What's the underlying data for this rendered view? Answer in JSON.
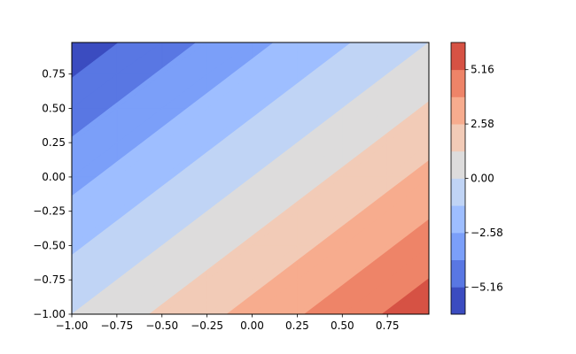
{
  "chart_data": {
    "type": "contourf",
    "title": "",
    "xlabel": "",
    "ylabel": "",
    "xlim": [
      -1.0,
      0.98
    ],
    "ylim": [
      -1.0,
      0.98
    ],
    "grid_x": [
      -1.0,
      -0.75,
      -0.5,
      -0.25,
      0.0,
      0.25,
      0.5,
      0.75,
      0.98
    ],
    "grid_y": [
      -1.0,
      -0.75,
      -0.5,
      -0.25,
      0.0,
      0.25,
      0.5,
      0.75,
      0.98
    ],
    "z_rows_bottom_to_top": [
      [
        0.0,
        0.75,
        1.5,
        2.25,
        3.0,
        3.75,
        4.5,
        5.25,
        5.94
      ],
      [
        -0.75,
        0.0,
        0.75,
        1.5,
        2.25,
        3.0,
        3.75,
        4.5,
        5.19
      ],
      [
        -1.5,
        -0.75,
        0.0,
        0.75,
        1.5,
        2.25,
        3.0,
        3.75,
        4.44
      ],
      [
        -2.25,
        -1.5,
        -0.75,
        0.0,
        0.75,
        1.5,
        2.25,
        3.0,
        3.69
      ],
      [
        -3.0,
        -2.25,
        -1.5,
        -0.75,
        0.0,
        0.75,
        1.5,
        2.25,
        2.94
      ],
      [
        -3.75,
        -3.0,
        -2.25,
        -1.5,
        -0.75,
        0.0,
        0.75,
        1.5,
        2.19
      ],
      [
        -4.5,
        -3.75,
        -3.0,
        -2.25,
        -1.5,
        -0.75,
        0.0,
        0.75,
        1.44
      ],
      [
        -5.25,
        -4.5,
        -3.75,
        -3.0,
        -2.25,
        -1.5,
        -0.75,
        0.0,
        0.69
      ],
      [
        -5.94,
        -5.19,
        -4.44,
        -3.69,
        -2.94,
        -2.19,
        -1.44,
        -0.69,
        0.0
      ]
    ],
    "levels": [
      -6.45,
      -5.16,
      -3.87,
      -2.58,
      -1.29,
      0.0,
      1.29,
      2.58,
      3.87,
      5.16,
      6.45
    ],
    "level_colors": [
      "#3b4cc0",
      "#5977e3",
      "#7b9ff9",
      "#9ebeff",
      "#c0d4f5",
      "#dddcdc",
      "#f2cbb7",
      "#f7ac8e",
      "#ee8468",
      "#d65244"
    ],
    "colormap": "coolwarm",
    "x_ticks": [
      -1.0,
      -0.75,
      -0.5,
      -0.25,
      0.0,
      0.25,
      0.5,
      0.75
    ],
    "x_tick_labels": [
      "−1.00",
      "−0.75",
      "−0.50",
      "−0.25",
      "0.00",
      "0.25",
      "0.50",
      "0.75"
    ],
    "y_ticks": [
      -1.0,
      -0.75,
      -0.5,
      -0.25,
      0.0,
      0.25,
      0.5,
      0.75
    ],
    "y_tick_labels": [
      "−1.00",
      "−0.75",
      "−0.50",
      "−0.25",
      "0.00",
      "0.25",
      "0.50",
      "0.75"
    ],
    "colorbar": {
      "range": [
        -6.45,
        6.45
      ],
      "ticks": [
        -5.16,
        -2.58,
        0.0,
        2.58,
        5.16
      ],
      "tick_labels": [
        "−5.16",
        "−2.58",
        "0.00",
        "2.58",
        "5.16"
      ]
    },
    "grid": false,
    "legend": "none"
  }
}
